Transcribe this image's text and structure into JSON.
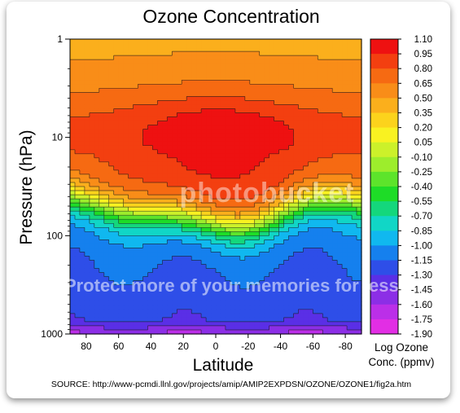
{
  "chart_data": {
    "type": "heatmap",
    "title": "Ozone Concentration",
    "xlabel": "Latitude",
    "ylabel": "Pressure (hPa)",
    "x_ticks": [
      "80",
      "60",
      "40",
      "20",
      "0",
      "-20",
      "-40",
      "-60",
      "-80"
    ],
    "x_tick_values": [
      80,
      60,
      40,
      20,
      0,
      -20,
      -40,
      -60,
      -80
    ],
    "xlim": [
      90,
      -90
    ],
    "y_ticks": [
      "1",
      "10",
      "100",
      "1000"
    ],
    "y_tick_values": [
      1,
      10,
      100,
      1000
    ],
    "ylim": [
      1,
      1000
    ],
    "y_scale": "log",
    "y_inverted": true,
    "colorbar": {
      "label_line1": "Log Ozone",
      "label_line2": "Conc. (ppmv)",
      "levels": [
        "1.10",
        "0.95",
        "0.80",
        "0.65",
        "0.50",
        "0.35",
        "0.20",
        "0.05",
        "-0.10",
        "-0.25",
        "-0.40",
        "-0.55",
        "-0.70",
        "-0.85",
        "-1.00",
        "-1.15",
        "-1.30",
        "-1.45",
        "-1.60",
        "-1.75",
        "-1.90"
      ],
      "colors": [
        "#ee1111",
        "#f33f10",
        "#f66a12",
        "#f98d18",
        "#fbaf1c",
        "#fcd31c",
        "#f9f221",
        "#ccf12a",
        "#9ded2c",
        "#5de42b",
        "#1edc27",
        "#14d77c",
        "#11d6c6",
        "#10b8ef",
        "#1580ee",
        "#2e4ee8",
        "#5a2fe6",
        "#8c2ee6",
        "#bb2fe8",
        "#e22ee4"
      ]
    },
    "representative_profile": [
      {
        "pressure_hPa": 1,
        "log_ozone_ppmv": 0.5
      },
      {
        "pressure_hPa": 3,
        "log_ozone_ppmv": 0.8
      },
      {
        "pressure_hPa": 10,
        "log_ozone_ppmv": 1.0
      },
      {
        "pressure_hPa": 30,
        "log_ozone_ppmv": 0.65
      },
      {
        "pressure_hPa": 60,
        "log_ozone_ppmv": 0.35
      },
      {
        "pressure_hPa": 100,
        "log_ozone_ppmv": -0.4
      },
      {
        "pressure_hPa": 200,
        "log_ozone_ppmv": -1.15
      },
      {
        "pressure_hPa": 500,
        "log_ozone_ppmv": -1.45
      },
      {
        "pressure_hPa": 1000,
        "log_ozone_ppmv": -1.75
      }
    ],
    "source": "SOURCE: http://www-pcmdi.llnl.gov/projects/amip/AMIP2EXPDSN/OZONE/OZONE1/fig2a.htm"
  },
  "watermark": {
    "logo": "photobucket",
    "tagline": "Protect more of your memories for less!"
  }
}
